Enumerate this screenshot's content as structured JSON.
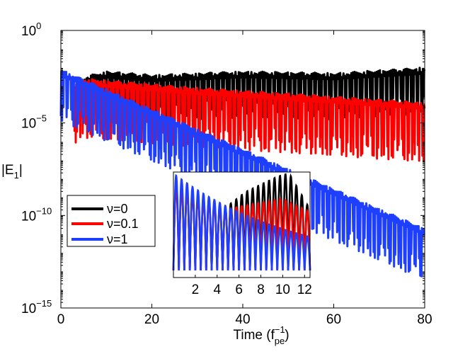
{
  "chart_data": {
    "type": "line",
    "xlabel_main": "Time (f",
    "xlabel_sup": "−1",
    "xlabel_sub": "pe",
    "xlabel_close": ")",
    "ylabel_main": "|E",
    "ylabel_sub": "1",
    "ylabel_close": "|",
    "xlim": [
      0,
      80
    ],
    "y_log_range": [
      -15,
      0
    ],
    "x_ticks": [
      {
        "value": 0,
        "label": "0"
      },
      {
        "value": 20,
        "label": "20"
      },
      {
        "value": 40,
        "label": "40"
      },
      {
        "value": 60,
        "label": "60"
      },
      {
        "value": 80,
        "label": "80"
      }
    ],
    "y_ticks": [
      {
        "exp": 0,
        "base": "10",
        "sup": "0"
      },
      {
        "exp": -5,
        "base": "10",
        "sup": "−5"
      },
      {
        "exp": -10,
        "base": "10",
        "sup": "−10"
      },
      {
        "exp": -15,
        "base": "10",
        "sup": "−15"
      }
    ],
    "legend": {
      "placement": "lower-left",
      "entries": [
        {
          "label": "ν=0",
          "color": "#000000"
        },
        {
          "label": "ν=0.1",
          "color": "#ff0000"
        },
        {
          "label": "ν=1",
          "color": "#1f3fff"
        }
      ]
    },
    "series": [
      {
        "name": "ν=0",
        "color": "#000000",
        "envelope_t": [
          5,
          10,
          20,
          40,
          60,
          80
        ],
        "envelope_log10": [
          -2.5,
          -2.2,
          -2.4,
          -2.2,
          -2.3,
          -2.0
        ],
        "spike_depth_log10": 2.5
      },
      {
        "name": "ν=0.1",
        "color": "#ff0000",
        "envelope_t": [
          3,
          5,
          10,
          30,
          50,
          80
        ],
        "envelope_log10": [
          -2.9,
          -2.6,
          -2.7,
          -3.1,
          -3.4,
          -3.9
        ],
        "spike_depth_log10": 3.2
      },
      {
        "name": "ν=1",
        "color": "#1f3fff",
        "envelope_t": [
          0,
          80
        ],
        "envelope_log10": [
          -2.1,
          -10.7
        ],
        "spike_depth_log10": 2.8
      }
    ],
    "inset": {
      "xlim": [
        0,
        12.5
      ],
      "x_ticks": [
        {
          "value": 2,
          "label": "2"
        },
        {
          "value": 4,
          "label": "4"
        },
        {
          "value": 6,
          "label": "6"
        },
        {
          "value": 8,
          "label": "8"
        },
        {
          "value": 10,
          "label": "10"
        },
        {
          "value": 12,
          "label": "12"
        }
      ],
      "note": "zoom of early time, linear scale"
    },
    "colors": {
      "black": "#000000",
      "red": "#ff0000",
      "blue": "#1f3fff"
    }
  }
}
